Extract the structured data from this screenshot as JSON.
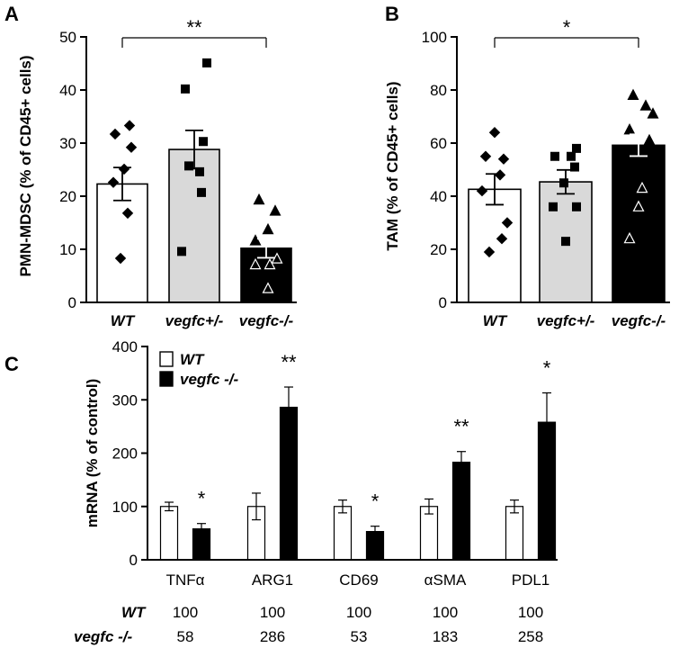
{
  "colors": {
    "wt": "#ffffff",
    "het": "#d9d9d9",
    "ko": "#000000",
    "stroke": "#000000"
  },
  "chart_data": [
    {
      "panel": "A",
      "type": "bar",
      "ylabel": "PMN-MDSC (% of CD45+ cells)",
      "ylim": [
        0,
        50
      ],
      "yticks": [
        0,
        10,
        20,
        30,
        40,
        50
      ],
      "categories": [
        "WT",
        "vegfc+/-",
        "vegfc-/-"
      ],
      "values": [
        22.3,
        28.8,
        10.2
      ],
      "sem": [
        3.1,
        3.6,
        1.8
      ],
      "points": [
        {
          "marker": "diamond",
          "values": [
            33.3,
            31.7,
            29.2,
            25.1,
            22.6,
            16.8,
            8.3
          ]
        },
        {
          "marker": "square",
          "values": [
            45.1,
            40.2,
            30.3,
            25.7,
            24.6,
            20.7,
            9.6
          ]
        },
        {
          "marker": "triangle",
          "values": [
            19.3,
            17.2,
            13.7,
            11.6,
            7.1,
            7.1,
            8.2,
            2.6
          ]
        }
      ],
      "significance": {
        "from": 0,
        "to": 2,
        "label": "**",
        "y": 50
      }
    },
    {
      "panel": "B",
      "type": "bar",
      "ylabel": "TAM (% of CD45+ cells)",
      "ylim": [
        0,
        100
      ],
      "yticks": [
        0,
        20,
        40,
        60,
        80,
        100
      ],
      "categories": [
        "WT",
        "vegfc+/-",
        "vegfc-/-"
      ],
      "values": [
        42.6,
        45.4,
        59.2
      ],
      "sem": [
        5.8,
        4.5,
        4.1
      ],
      "points": [
        {
          "marker": "diamond",
          "values": [
            64,
            55,
            54,
            48,
            42,
            30,
            24,
            19
          ]
        },
        {
          "marker": "square",
          "values": [
            58,
            55,
            55,
            51,
            45,
            36,
            36,
            23
          ]
        },
        {
          "marker": "triangle",
          "values": [
            78,
            74,
            71,
            65,
            61,
            43,
            36,
            24
          ]
        }
      ],
      "significance": {
        "from": 0,
        "to": 2,
        "label": "*",
        "y": 100
      }
    },
    {
      "panel": "C",
      "type": "bar",
      "ylabel": "mRNA (% of control)",
      "ylim": [
        0,
        400
      ],
      "yticks": [
        0,
        100,
        200,
        300,
        400
      ],
      "categories": [
        "TNFα",
        "ARG1",
        "CD69",
        "αSMA",
        "PDL1"
      ],
      "series": [
        {
          "name": "WT",
          "values": [
            100,
            100,
            100,
            100,
            100
          ],
          "sem": [
            8,
            25,
            12,
            14,
            12
          ]
        },
        {
          "name": "vegfc -/-",
          "values": [
            58,
            286,
            53,
            183,
            258
          ],
          "sem": [
            10,
            38,
            10,
            20,
            55
          ]
        }
      ],
      "significance": [
        "*",
        "**",
        "*",
        "**",
        "*"
      ],
      "legend": [
        "WT",
        "vegfc -/-"
      ],
      "table": {
        "rows": [
          {
            "label": "WT",
            "values": [
              "100",
              "100",
              "100",
              "100",
              "100"
            ]
          },
          {
            "label": "vegfc -/-",
            "values": [
              "58",
              "286",
              "53",
              "183",
              "258"
            ]
          }
        ]
      }
    }
  ]
}
